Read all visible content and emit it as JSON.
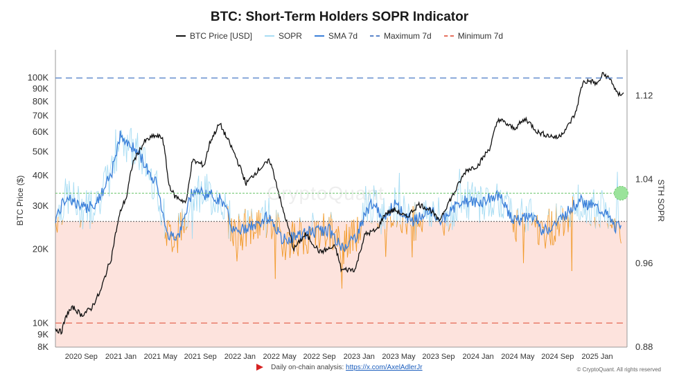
{
  "chart_data": {
    "type": "line",
    "title": "BTC: Short-Term Holders SOPR Indicator",
    "ylabel_left": "BTC Price ($)",
    "ylabel_right": "STH SOPR",
    "left_axis": {
      "scale": "log",
      "range": [
        8000,
        125000
      ],
      "ticks": [
        {
          "v": 100000,
          "l": "100K"
        },
        {
          "v": 90000,
          "l": "90K"
        },
        {
          "v": 80000,
          "l": "80K"
        },
        {
          "v": 70000,
          "l": "70K"
        },
        {
          "v": 60000,
          "l": "60K"
        },
        {
          "v": 50000,
          "l": "50K"
        },
        {
          "v": 40000,
          "l": "40K"
        },
        {
          "v": 30000,
          "l": "30K"
        },
        {
          "v": 20000,
          "l": "20K"
        },
        {
          "v": 10000,
          "l": "10K"
        },
        {
          "v": 9000,
          "l": "9K"
        },
        {
          "v": 8000,
          "l": "8K"
        }
      ]
    },
    "right_axis": {
      "range": [
        0.88,
        1.16
      ],
      "ticks": [
        {
          "v": 1.12,
          "l": "1.12"
        },
        {
          "v": 1.04,
          "l": "1.04"
        },
        {
          "v": 0.96,
          "l": "0.96"
        },
        {
          "v": 0.88,
          "l": "0.88"
        }
      ]
    },
    "x_ticks": [
      {
        "t": 2020.667,
        "l": "2020 Sep"
      },
      {
        "t": 2021.0,
        "l": "2021 Jan"
      },
      {
        "t": 2021.333,
        "l": "2021 May"
      },
      {
        "t": 2021.667,
        "l": "2021 Sep"
      },
      {
        "t": 2022.0,
        "l": "2022 Jan"
      },
      {
        "t": 2022.333,
        "l": "2022 May"
      },
      {
        "t": 2022.667,
        "l": "2022 Sep"
      },
      {
        "t": 2023.0,
        "l": "2023 Jan"
      },
      {
        "t": 2023.333,
        "l": "2023 May"
      },
      {
        "t": 2023.667,
        "l": "2023 Sep"
      },
      {
        "t": 2024.0,
        "l": "2024 Jan"
      },
      {
        "t": 2024.333,
        "l": "2024 May"
      },
      {
        "t": 2024.667,
        "l": "2024 Sep"
      },
      {
        "t": 2025.0,
        "l": "2025 Jan"
      }
    ],
    "x_range": [
      2020.45,
      2025.25
    ],
    "maximum_7d": 1.137,
    "minimum_7d": 0.903,
    "baseline_sopr": 1.0,
    "signal_line_sopr": 1.027,
    "signal_marker": {
      "t": 2025.2,
      "sopr": 1.027
    },
    "series_btc": [
      [
        2020.45,
        9500
      ],
      [
        2020.5,
        9200
      ],
      [
        2020.55,
        11000
      ],
      [
        2020.6,
        11600
      ],
      [
        2020.67,
        10800
      ],
      [
        2020.75,
        11500
      ],
      [
        2020.83,
        13500
      ],
      [
        2020.92,
        18500
      ],
      [
        2021.0,
        29000
      ],
      [
        2021.05,
        33000
      ],
      [
        2021.1,
        45000
      ],
      [
        2021.2,
        55000
      ],
      [
        2021.28,
        58000
      ],
      [
        2021.35,
        57000
      ],
      [
        2021.4,
        37000
      ],
      [
        2021.45,
        33000
      ],
      [
        2021.55,
        31000
      ],
      [
        2021.6,
        46000
      ],
      [
        2021.7,
        44000
      ],
      [
        2021.75,
        55000
      ],
      [
        2021.83,
        65000
      ],
      [
        2021.88,
        58000
      ],
      [
        2021.97,
        47000
      ],
      [
        2022.05,
        37000
      ],
      [
        2022.15,
        42000
      ],
      [
        2022.25,
        46000
      ],
      [
        2022.35,
        30000
      ],
      [
        2022.45,
        20000
      ],
      [
        2022.55,
        23000
      ],
      [
        2022.67,
        19500
      ],
      [
        2022.8,
        20500
      ],
      [
        2022.85,
        16500
      ],
      [
        2022.97,
        16600
      ],
      [
        2023.05,
        23000
      ],
      [
        2023.15,
        24000
      ],
      [
        2023.22,
        28000
      ],
      [
        2023.3,
        29000
      ],
      [
        2023.4,
        27000
      ],
      [
        2023.5,
        30500
      ],
      [
        2023.6,
        29000
      ],
      [
        2023.67,
        26000
      ],
      [
        2023.8,
        34000
      ],
      [
        2023.9,
        42000
      ],
      [
        2024.0,
        44000
      ],
      [
        2024.1,
        52000
      ],
      [
        2024.17,
        68000
      ],
      [
        2024.3,
        62000
      ],
      [
        2024.4,
        68000
      ],
      [
        2024.5,
        60000
      ],
      [
        2024.6,
        58000
      ],
      [
        2024.67,
        57000
      ],
      [
        2024.75,
        63000
      ],
      [
        2024.82,
        72000
      ],
      [
        2024.88,
        96000
      ],
      [
        2024.95,
        97000
      ],
      [
        2025.0,
        94000
      ],
      [
        2025.05,
        104000
      ],
      [
        2025.12,
        97000
      ],
      [
        2025.17,
        85000
      ],
      [
        2025.22,
        87000
      ]
    ],
    "series_sma_7d": [
      [
        2020.45,
        1.003
      ],
      [
        2020.55,
        1.025
      ],
      [
        2020.67,
        1.012
      ],
      [
        2020.8,
        1.018
      ],
      [
        2020.92,
        1.045
      ],
      [
        2021.0,
        1.085
      ],
      [
        2021.05,
        1.075
      ],
      [
        2021.15,
        1.065
      ],
      [
        2021.3,
        1.035
      ],
      [
        2021.4,
        0.985
      ],
      [
        2021.5,
        0.99
      ],
      [
        2021.6,
        1.03
      ],
      [
        2021.75,
        1.025
      ],
      [
        2021.85,
        1.02
      ],
      [
        2021.95,
        0.99
      ],
      [
        2022.1,
        0.995
      ],
      [
        2022.25,
        1.005
      ],
      [
        2022.35,
        0.982
      ],
      [
        2022.45,
        0.985
      ],
      [
        2022.6,
        0.99
      ],
      [
        2022.75,
        0.992
      ],
      [
        2022.85,
        0.975
      ],
      [
        2022.97,
        0.985
      ],
      [
        2023.1,
        1.018
      ],
      [
        2023.2,
        1.005
      ],
      [
        2023.3,
        1.015
      ],
      [
        2023.45,
        1.0
      ],
      [
        2023.6,
        1.01
      ],
      [
        2023.7,
        1.0
      ],
      [
        2023.85,
        1.02
      ],
      [
        2024.0,
        1.018
      ],
      [
        2024.17,
        1.025
      ],
      [
        2024.3,
        1.0
      ],
      [
        2024.45,
        1.005
      ],
      [
        2024.55,
        0.99
      ],
      [
        2024.67,
        1.0
      ],
      [
        2024.85,
        1.02
      ],
      [
        2024.95,
        1.015
      ],
      [
        2025.05,
        1.01
      ],
      [
        2025.15,
        0.995
      ],
      [
        2025.22,
        0.998
      ]
    ]
  },
  "legend": {
    "btc": "BTC Price [USD]",
    "sopr": "SOPR",
    "sma": "SMA 7d",
    "max": "Maximum 7d",
    "min": "Minimum 7d"
  },
  "colors": {
    "btc": "#111111",
    "sopr": "#a7dcf3",
    "sma": "#3b7fd9",
    "max": "#5a84c9",
    "min": "#e6705e",
    "below_fill": "#fde3dd",
    "orange": "#f19a2a",
    "signal": "#6ac46a",
    "signal_fill": "#9be39b"
  },
  "footer": {
    "text": "Daily on-chain analysis:",
    "link": "https://x.com/AxelAdlerJr"
  },
  "copyright": "© CryptoQuant. All rights reserved",
  "watermark": "CryptoQuant"
}
